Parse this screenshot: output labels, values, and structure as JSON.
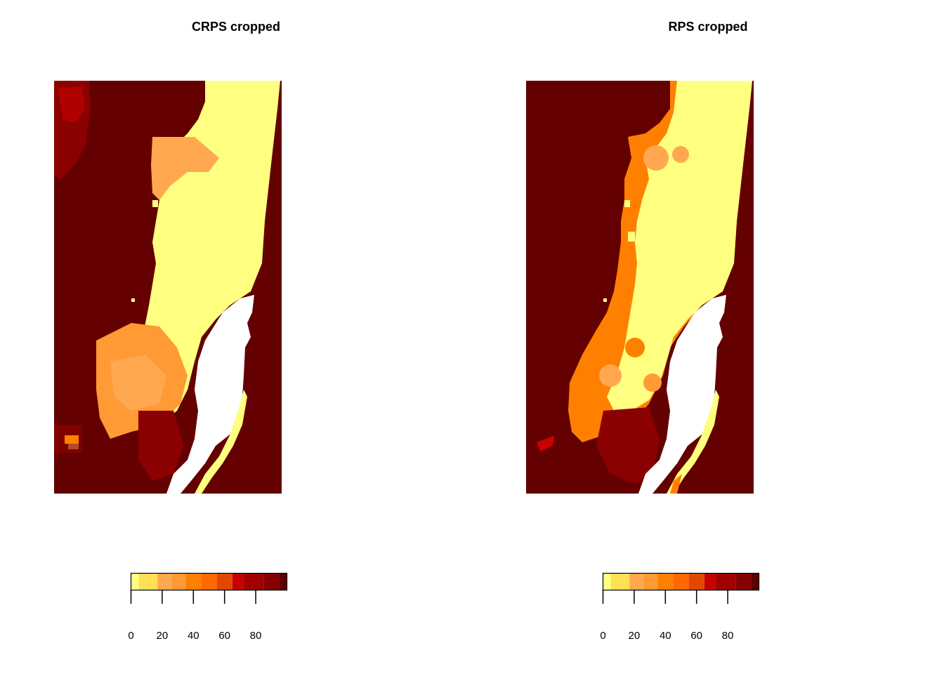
{
  "panels": [
    {
      "id": "crps",
      "title": "CRPS cropped"
    },
    {
      "id": "rps",
      "title": "RPS cropped"
    }
  ],
  "legend": {
    "range": [
      0,
      100
    ],
    "breaks": [
      0,
      5,
      17,
      26,
      35,
      45,
      55,
      65,
      72,
      85,
      95,
      100
    ],
    "colors": [
      "#FFFF80",
      "#FFE055",
      "#FFA850",
      "#FF9A35",
      "#FF8000",
      "#FF6A00",
      "#E04800",
      "#C80000",
      "#A00000",
      "#850000",
      "#600000"
    ],
    "ticks": [
      0,
      20,
      40,
      60,
      80
    ],
    "tick_labels": [
      "0",
      "20",
      "40",
      "60",
      "80"
    ]
  },
  "map_colors": {
    "low": "#FFFF80",
    "mid_light": "#FFA850",
    "mid": "#FF8000",
    "high": "#C80000",
    "max": "#640000",
    "water": "#FFFFFF"
  }
}
